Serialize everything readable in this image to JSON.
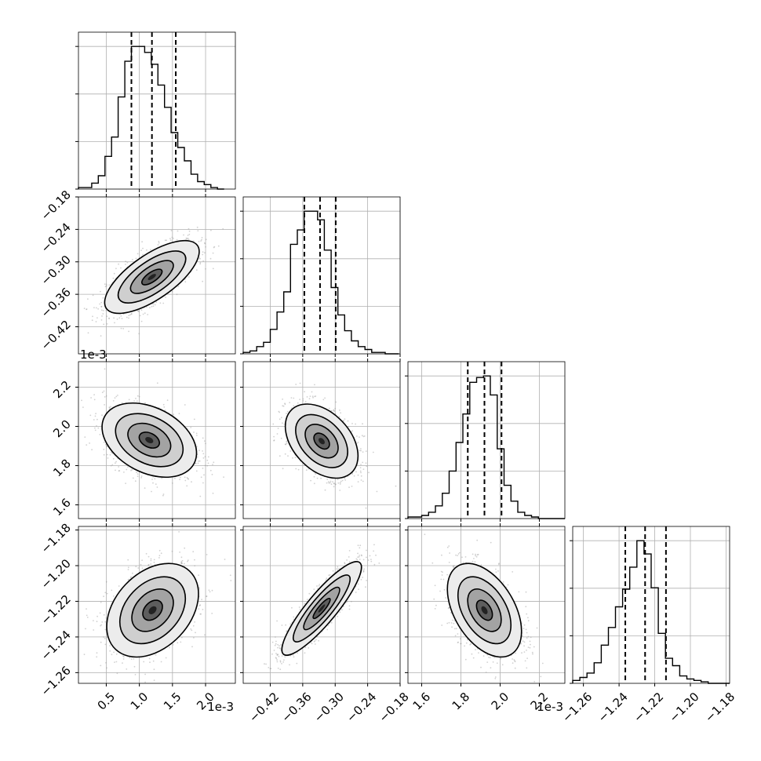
{
  "chart_data": {
    "type": "corner",
    "grid": true,
    "params": [
      {
        "offset_text": "1e-3",
        "range": [
          0.08,
          2.45
        ],
        "ticks": [
          0.5,
          1.0,
          1.5,
          2.0
        ],
        "tick_labels": [
          "0.5",
          "1.0",
          "1.5",
          "2.0"
        ],
        "quantiles": [
          0.88,
          1.19,
          1.55
        ],
        "hist": {
          "start": 0.08,
          "bin_width": 0.1,
          "counts": [
            1,
            1,
            4,
            9,
            22,
            35,
            62,
            86,
            96,
            96,
            92,
            84,
            70,
            55,
            38,
            28,
            19,
            10,
            5,
            3,
            1,
            0
          ]
        }
      },
      {
        "offset_text": "",
        "range": [
          -0.47,
          -0.18
        ],
        "ticks": [
          -0.42,
          -0.36,
          -0.3,
          -0.24,
          -0.18
        ],
        "tick_labels": [
          "−0.42",
          "−0.36",
          "−0.30",
          "−0.24",
          "−0.18"
        ],
        "quantiles": [
          -0.357,
          -0.328,
          -0.299
        ],
        "hist": {
          "start": -0.47,
          "bin_width": 0.0125,
          "counts": [
            1,
            2,
            5,
            8,
            17,
            29,
            43,
            76,
            86,
            99,
            99,
            93,
            72,
            46,
            27,
            16,
            9,
            5,
            3,
            1,
            1,
            0,
            0
          ]
        }
      },
      {
        "offset_text": "1e-3",
        "range": [
          1.53,
          2.33
        ],
        "ticks": [
          1.6,
          1.8,
          2.0,
          2.2
        ],
        "tick_labels": [
          "1.6",
          "1.8",
          "2.0",
          "2.2"
        ],
        "quantiles": [
          1.835,
          1.92,
          2.007
        ],
        "hist": {
          "start": 1.53,
          "bin_width": 0.035,
          "counts": [
            1,
            1,
            2,
            4,
            8,
            16,
            30,
            48,
            66,
            86,
            89,
            90,
            78,
            44,
            21,
            11,
            4,
            2,
            1,
            0,
            0,
            0,
            0
          ]
        }
      },
      {
        "offset_text": "",
        "range": [
          -1.266,
          -1.178
        ],
        "ticks": [
          -1.26,
          -1.24,
          -1.22,
          -1.2,
          -1.18
        ],
        "tick_labels": [
          "−1.26",
          "−1.24",
          "−1.22",
          "−1.20",
          "−1.18"
        ],
        "quantiles": [
          -1.2365,
          -1.2254,
          -1.2137
        ],
        "hist": {
          "start": -1.266,
          "bin_width": 0.004,
          "counts": [
            2,
            4,
            7,
            14,
            26,
            38,
            52,
            64,
            79,
            97,
            88,
            65,
            34,
            17,
            12,
            5,
            3,
            2,
            1,
            0,
            0,
            0
          ]
        }
      }
    ],
    "pairs": [
      {
        "row": 1,
        "col": 0,
        "mean": [
          1.19,
          -0.328
        ],
        "sd": [
          0.34,
          0.032
        ],
        "corr": 0.7
      },
      {
        "row": 2,
        "col": 0,
        "mean": [
          1.15,
          1.93
        ],
        "sd": [
          0.34,
          0.09
        ],
        "corr": -0.35
      },
      {
        "row": 2,
        "col": 1,
        "mean": [
          -0.325,
          1.925
        ],
        "sd": [
          0.032,
          0.09
        ],
        "corr": -0.4
      },
      {
        "row": 3,
        "col": 0,
        "mean": [
          1.2,
          -1.225
        ],
        "sd": [
          0.33,
          0.0125
        ],
        "corr": 0.35
      },
      {
        "row": 3,
        "col": 1,
        "mean": [
          -0.325,
          -1.224
        ],
        "sd": [
          0.035,
          0.0125
        ],
        "corr": 0.88
      },
      {
        "row": 3,
        "col": 2,
        "mean": [
          1.92,
          -1.225
        ],
        "sd": [
          0.09,
          0.0125
        ],
        "corr": -0.45
      }
    ]
  }
}
